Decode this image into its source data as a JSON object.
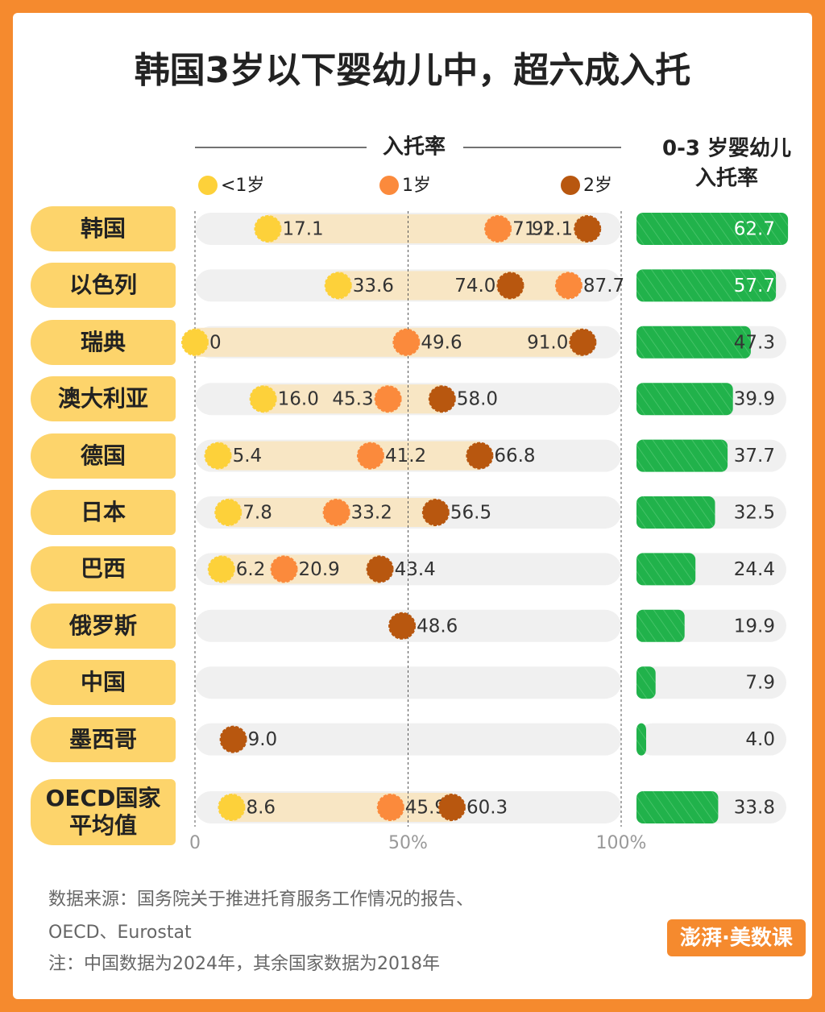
{
  "title": "韩国3岁以下婴幼儿中，超六成入托",
  "chart_data": [
    {
      "type": "dot",
      "title": "入托率",
      "categories": [
        "韩国",
        "以色列",
        "瑞典",
        "澳大利亚",
        "德国",
        "日本",
        "巴西",
        "俄罗斯",
        "中国",
        "墨西哥",
        "OECD国家平均值"
      ],
      "xlim": [
        0,
        100
      ],
      "xticks": [
        {
          "value": 0,
          "label": "0"
        },
        {
          "value": 50,
          "label": "50%"
        },
        {
          "value": 100,
          "label": "100%"
        }
      ],
      "series": [
        {
          "name": "<1岁",
          "color": "#fdd13a",
          "values": [
            17.1,
            33.6,
            0,
            16.0,
            5.4,
            7.8,
            6.2,
            null,
            null,
            null,
            8.6
          ],
          "value_labels": [
            "17.1",
            "33.6",
            "0",
            "16.0",
            "5.4",
            "7.8",
            "6.2",
            null,
            null,
            null,
            "8.6"
          ]
        },
        {
          "name": "1岁",
          "color": "#fb8a3c",
          "values": [
            71.1,
            87.7,
            49.6,
            45.3,
            41.2,
            33.2,
            20.9,
            null,
            null,
            null,
            45.9
          ],
          "value_labels": [
            "71.1",
            "87.7",
            "49.6",
            "45.3",
            "41.2",
            "33.2",
            "20.9",
            null,
            null,
            null,
            "45.9"
          ]
        },
        {
          "name": "2岁",
          "color": "#b8570f",
          "values": [
            92.1,
            74.0,
            91.0,
            58.0,
            66.8,
            56.5,
            43.4,
            48.6,
            null,
            9.0,
            60.3
          ],
          "value_labels": [
            "92.1",
            "74.0",
            "91.0",
            "58.0",
            "66.8",
            "56.5",
            "43.4",
            "48.6",
            null,
            "9.0",
            "60.3"
          ]
        }
      ]
    },
    {
      "type": "bar",
      "title_lines": [
        "0-3 岁婴幼儿",
        "入托率"
      ],
      "color": "#21b24b",
      "values": [
        62.7,
        57.7,
        47.3,
        39.9,
        37.7,
        32.5,
        24.4,
        19.9,
        7.9,
        4.0,
        33.8
      ],
      "value_labels": [
        "62.7",
        "57.7",
        "47.3",
        "39.9",
        "37.7",
        "32.5",
        "24.4",
        "19.9",
        "7.9",
        "4.0",
        "33.8"
      ]
    }
  ],
  "source_lines": [
    "数据来源：国务院关于推进托育服务工作情况的报告、",
    "OECD、Eurostat",
    "注：中国数据为2024年，其余国家数据为2018年"
  ],
  "logo": "澎湃·美数课"
}
